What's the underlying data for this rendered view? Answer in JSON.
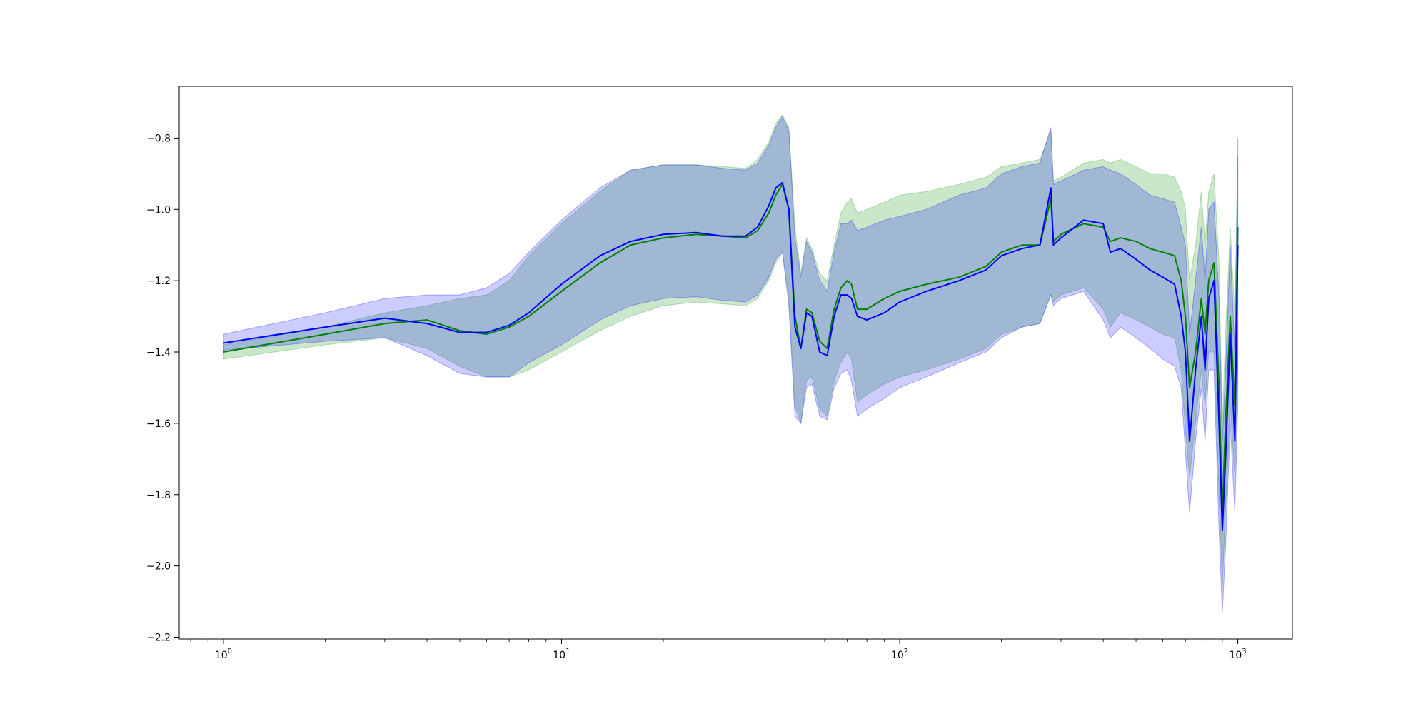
{
  "chart_data": {
    "type": "line",
    "title": "",
    "xlabel": "",
    "ylabel": "",
    "x_scale": "log",
    "xlim": [
      0.74,
      1450
    ],
    "ylim": [
      -2.205,
      -0.655
    ],
    "x_ticks": [
      {
        "value": 1,
        "base": "10",
        "exp": "0"
      },
      {
        "value": 10,
        "base": "10",
        "exp": "1"
      },
      {
        "value": 100,
        "base": "10",
        "exp": "2"
      },
      {
        "value": 1000,
        "base": "10",
        "exp": "3"
      }
    ],
    "y_ticks": [
      {
        "value": -0.8,
        "label": "−0.8"
      },
      {
        "value": -1.0,
        "label": "−1.0"
      },
      {
        "value": -1.2,
        "label": "−1.2"
      },
      {
        "value": -1.4,
        "label": "−1.4"
      },
      {
        "value": -1.6,
        "label": "−1.6"
      },
      {
        "value": -1.8,
        "label": "−1.8"
      },
      {
        "value": -2.0,
        "label": "−2.0"
      },
      {
        "value": -2.2,
        "label": "−2.2"
      }
    ],
    "grid": false,
    "legend": "none",
    "series": [
      {
        "color": "#008000",
        "band_color": "#2ca02c",
        "band_opacity": 0.25,
        "x": [
          1,
          2,
          3,
          4,
          5,
          6,
          7,
          8,
          10,
          13,
          16,
          20,
          25,
          30,
          35,
          38,
          41,
          43,
          45,
          47,
          49,
          51,
          53,
          55,
          58,
          61,
          64,
          67,
          70,
          72,
          75,
          80,
          90,
          100,
          120,
          150,
          180,
          200,
          230,
          260,
          280,
          285,
          300,
          350,
          400,
          420,
          450,
          500,
          550,
          600,
          650,
          680,
          700,
          720,
          750,
          780,
          800,
          820,
          850,
          880,
          900,
          920,
          950,
          980,
          1000
        ],
        "y": [
          -1.4,
          -1.35,
          -1.32,
          -1.31,
          -1.34,
          -1.35,
          -1.33,
          -1.3,
          -1.23,
          -1.15,
          -1.1,
          -1.08,
          -1.07,
          -1.075,
          -1.08,
          -1.06,
          -1.01,
          -0.96,
          -0.93,
          -1.0,
          -1.3,
          -1.39,
          -1.28,
          -1.29,
          -1.37,
          -1.39,
          -1.28,
          -1.22,
          -1.2,
          -1.21,
          -1.28,
          -1.28,
          -1.25,
          -1.23,
          -1.21,
          -1.19,
          -1.16,
          -1.12,
          -1.1,
          -1.1,
          -0.97,
          -1.09,
          -1.07,
          -1.04,
          -1.05,
          -1.09,
          -1.08,
          -1.09,
          -1.11,
          -1.12,
          -1.13,
          -1.2,
          -1.3,
          -1.5,
          -1.4,
          -1.25,
          -1.35,
          -1.2,
          -1.15,
          -1.5,
          -1.85,
          -1.6,
          -1.3,
          -1.55,
          -1.05
        ],
        "lower": [
          -1.42,
          -1.38,
          -1.36,
          -1.39,
          -1.44,
          -1.47,
          -1.47,
          -1.45,
          -1.4,
          -1.34,
          -1.3,
          -1.27,
          -1.26,
          -1.265,
          -1.27,
          -1.25,
          -1.2,
          -1.15,
          -1.12,
          -1.25,
          -1.55,
          -1.6,
          -1.48,
          -1.47,
          -1.56,
          -1.58,
          -1.48,
          -1.43,
          -1.4,
          -1.42,
          -1.54,
          -1.52,
          -1.49,
          -1.47,
          -1.45,
          -1.42,
          -1.39,
          -1.35,
          -1.33,
          -1.32,
          -1.24,
          -1.26,
          -1.24,
          -1.22,
          -1.28,
          -1.33,
          -1.29,
          -1.31,
          -1.33,
          -1.35,
          -1.36,
          -1.45,
          -1.62,
          -1.75,
          -1.6,
          -1.45,
          -1.55,
          -1.4,
          -1.4,
          -1.8,
          -2.05,
          -1.85,
          -1.55,
          -1.75,
          -1.45
        ],
        "upper": [
          -1.38,
          -1.33,
          -1.29,
          -1.27,
          -1.25,
          -1.24,
          -1.2,
          -1.13,
          -1.04,
          -0.95,
          -0.89,
          -0.875,
          -0.875,
          -0.88,
          -0.885,
          -0.86,
          -0.81,
          -0.76,
          -0.735,
          -0.77,
          -1.05,
          -1.18,
          -1.08,
          -1.11,
          -1.18,
          -1.2,
          -1.1,
          -1.01,
          -0.98,
          -0.97,
          -1.01,
          -1.0,
          -0.98,
          -0.96,
          -0.95,
          -0.93,
          -0.91,
          -0.88,
          -0.87,
          -0.86,
          -0.78,
          -0.92,
          -0.91,
          -0.87,
          -0.86,
          -0.87,
          -0.86,
          -0.88,
          -0.9,
          -0.9,
          -0.91,
          -0.95,
          -1.0,
          -1.2,
          -1.1,
          -0.95,
          -1.1,
          -0.95,
          -0.9,
          -1.15,
          -1.6,
          -1.35,
          -1.05,
          -1.3,
          -0.85
        ]
      },
      {
        "color": "#0000ff",
        "band_color": "#0000ff",
        "band_opacity": 0.2,
        "x": [
          1,
          2,
          3,
          4,
          5,
          6,
          7,
          8,
          10,
          13,
          16,
          20,
          25,
          30,
          35,
          38,
          41,
          43,
          45,
          47,
          49,
          51,
          53,
          55,
          58,
          61,
          64,
          67,
          70,
          72,
          75,
          80,
          90,
          100,
          120,
          150,
          180,
          200,
          230,
          260,
          280,
          285,
          300,
          350,
          400,
          420,
          450,
          500,
          550,
          600,
          650,
          680,
          700,
          720,
          750,
          780,
          800,
          820,
          850,
          880,
          900,
          920,
          950,
          980,
          1000
        ],
        "y": [
          -1.375,
          -1.33,
          -1.305,
          -1.32,
          -1.345,
          -1.345,
          -1.325,
          -1.29,
          -1.21,
          -1.13,
          -1.09,
          -1.07,
          -1.065,
          -1.075,
          -1.075,
          -1.05,
          -0.99,
          -0.94,
          -0.925,
          -1.0,
          -1.33,
          -1.39,
          -1.29,
          -1.3,
          -1.4,
          -1.41,
          -1.3,
          -1.24,
          -1.24,
          -1.25,
          -1.3,
          -1.31,
          -1.29,
          -1.26,
          -1.23,
          -1.2,
          -1.17,
          -1.13,
          -1.11,
          -1.1,
          -0.94,
          -1.1,
          -1.08,
          -1.03,
          -1.04,
          -1.12,
          -1.11,
          -1.14,
          -1.17,
          -1.19,
          -1.21,
          -1.3,
          -1.4,
          -1.65,
          -1.45,
          -1.3,
          -1.45,
          -1.25,
          -1.2,
          -1.6,
          -1.9,
          -1.7,
          -1.35,
          -1.65,
          -1.1
        ],
        "lower": [
          -1.395,
          -1.37,
          -1.36,
          -1.41,
          -1.46,
          -1.47,
          -1.47,
          -1.43,
          -1.38,
          -1.31,
          -1.27,
          -1.25,
          -1.245,
          -1.255,
          -1.26,
          -1.24,
          -1.19,
          -1.14,
          -1.12,
          -1.27,
          -1.58,
          -1.6,
          -1.5,
          -1.49,
          -1.58,
          -1.59,
          -1.5,
          -1.46,
          -1.45,
          -1.48,
          -1.58,
          -1.56,
          -1.53,
          -1.5,
          -1.47,
          -1.43,
          -1.4,
          -1.36,
          -1.33,
          -1.32,
          -1.24,
          -1.27,
          -1.25,
          -1.23,
          -1.31,
          -1.36,
          -1.33,
          -1.36,
          -1.39,
          -1.42,
          -1.44,
          -1.5,
          -1.68,
          -1.85,
          -1.65,
          -1.5,
          -1.65,
          -1.45,
          -1.45,
          -1.9,
          -2.13,
          -1.95,
          -1.6,
          -1.85,
          -1.55
        ],
        "upper": [
          -1.35,
          -1.29,
          -1.25,
          -1.24,
          -1.24,
          -1.22,
          -1.18,
          -1.12,
          -1.03,
          -0.94,
          -0.89,
          -0.875,
          -0.875,
          -0.885,
          -0.89,
          -0.87,
          -0.82,
          -0.77,
          -0.74,
          -0.78,
          -1.08,
          -1.19,
          -1.09,
          -1.12,
          -1.2,
          -1.23,
          -1.12,
          -1.04,
          -1.04,
          -1.03,
          -1.06,
          -1.05,
          -1.03,
          -1.02,
          -1.0,
          -0.96,
          -0.94,
          -0.9,
          -0.88,
          -0.87,
          -0.77,
          -0.93,
          -0.92,
          -0.89,
          -0.88,
          -0.89,
          -0.9,
          -0.93,
          -0.96,
          -0.97,
          -0.98,
          -1.05,
          -1.1,
          -1.35,
          -1.2,
          -1.05,
          -1.2,
          -1.0,
          -0.98,
          -1.25,
          -1.65,
          -1.45,
          -1.1,
          -1.4,
          -0.8
        ]
      }
    ]
  }
}
